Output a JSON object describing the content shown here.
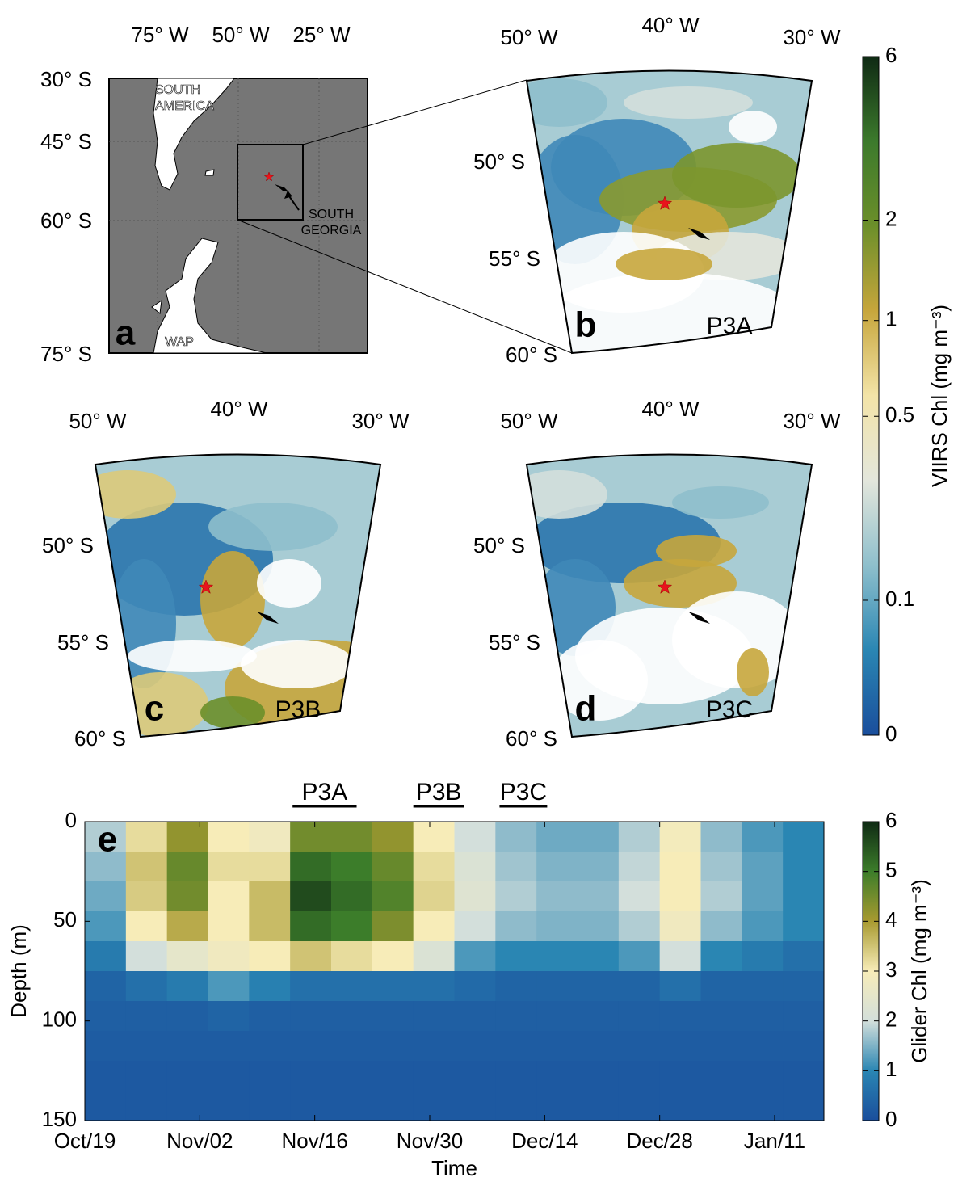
{
  "map_a": {
    "letter": "a",
    "lon_labels": [
      "75° W",
      "50° W",
      "25° W"
    ],
    "lat_labels": [
      "30° S",
      "45° S",
      "60° S",
      "75° S"
    ],
    "place_labels": [
      [
        "SOUTH",
        "AMERICA"
      ],
      [
        "SOUTH",
        "GEORGIA"
      ],
      [
        "WAP"
      ]
    ]
  },
  "satellite_maps": [
    {
      "letter": "b",
      "period": "P3A",
      "lon_labels": [
        "50° W",
        "40° W",
        "30° W"
      ],
      "lat_labels": [
        "50° S",
        "55° S",
        "60° S"
      ]
    },
    {
      "letter": "c",
      "period": "P3B",
      "lon_labels": [
        "50° W",
        "40° W",
        "30° W"
      ],
      "lat_labels": [
        "50° S",
        "55° S",
        "60° S"
      ]
    },
    {
      "letter": "d",
      "period": "P3C",
      "lon_labels": [
        "50° W",
        "40° W",
        "30° W"
      ],
      "lat_labels": [
        "50° S",
        "55° S",
        "60° S"
      ]
    }
  ],
  "chart_data": [
    {
      "type": "colorbar",
      "label": "VIIRS Chl (mg m⁻³)",
      "lim": [
        0,
        6
      ],
      "ticks": [
        0,
        0.1,
        0.5,
        1,
        2,
        6
      ],
      "scale": "log",
      "colormap": [
        "#1a4e9c",
        "#2a86b3",
        "#8ebfcc",
        "#e3e6dc",
        "#f3e4a8",
        "#c7a63c",
        "#6c8f2a",
        "#3c7a2c",
        "#0f2a14"
      ]
    },
    {
      "type": "heatmap",
      "xlabel": "Time",
      "ylabel": "Depth (m)",
      "x": [
        0,
        5,
        10,
        15,
        20,
        25,
        30,
        35,
        40,
        45,
        50,
        55,
        60,
        65,
        70,
        75,
        80,
        85
      ],
      "y": [
        0,
        15,
        30,
        45,
        60,
        75,
        90,
        105,
        120,
        135
      ],
      "values": [
        [
          1.8,
          3.2,
          4.2,
          3.0,
          2.8,
          4.5,
          4.5,
          4.2,
          3.0,
          2.0,
          1.6,
          1.4,
          1.4,
          1.8,
          2.9,
          1.6,
          1.2,
          1.0
        ],
        [
          1.6,
          3.5,
          4.6,
          3.2,
          3.2,
          5.2,
          5.0,
          4.6,
          3.2,
          2.2,
          1.7,
          1.5,
          1.5,
          1.9,
          3.0,
          1.7,
          1.3,
          1.0
        ],
        [
          1.4,
          3.4,
          4.5,
          3.0,
          3.6,
          5.6,
          5.2,
          4.8,
          3.3,
          2.3,
          1.8,
          1.6,
          1.6,
          2.0,
          3.0,
          1.8,
          1.3,
          1.0
        ],
        [
          1.2,
          3.0,
          3.8,
          3.0,
          3.6,
          5.2,
          5.0,
          4.4,
          3.0,
          2.0,
          1.6,
          1.5,
          1.5,
          1.8,
          2.8,
          1.6,
          1.2,
          1.0
        ],
        [
          0.8,
          2.0,
          2.5,
          2.8,
          3.0,
          3.5,
          3.2,
          3.0,
          2.2,
          1.2,
          1.0,
          1.0,
          1.0,
          1.2,
          2.0,
          1.0,
          0.8,
          0.6
        ],
        [
          0.4,
          0.6,
          0.8,
          1.2,
          0.9,
          0.6,
          0.6,
          0.6,
          0.6,
          0.5,
          0.4,
          0.4,
          0.4,
          0.4,
          0.6,
          0.4,
          0.4,
          0.4
        ],
        [
          0.3,
          0.3,
          0.3,
          0.4,
          0.3,
          0.3,
          0.3,
          0.3,
          0.3,
          0.3,
          0.3,
          0.3,
          0.3,
          0.3,
          0.3,
          0.3,
          0.3,
          0.3
        ],
        [
          0.25,
          0.25,
          0.25,
          0.25,
          0.25,
          0.25,
          0.25,
          0.25,
          0.25,
          0.25,
          0.25,
          0.25,
          0.25,
          0.25,
          0.25,
          0.25,
          0.25,
          0.25
        ],
        [
          0.2,
          0.2,
          0.2,
          0.2,
          0.2,
          0.2,
          0.2,
          0.2,
          0.2,
          0.2,
          0.2,
          0.2,
          0.2,
          0.2,
          0.2,
          0.2,
          0.2,
          0.2
        ],
        [
          0.2,
          0.2,
          0.2,
          0.2,
          0.2,
          0.2,
          0.2,
          0.2,
          0.2,
          0.2,
          0.2,
          0.2,
          0.2,
          0.2,
          0.2,
          0.2,
          0.2,
          0.2
        ]
      ],
      "xlim": [
        0,
        90
      ],
      "ylim": [
        0,
        150
      ],
      "xticks": [
        {
          "value": 0,
          "label": "Oct/19"
        },
        {
          "value": 14,
          "label": "Nov/02"
        },
        {
          "value": 28,
          "label": "Nov/16"
        },
        {
          "value": 42,
          "label": "Nov/30"
        },
        {
          "value": 56,
          "label": "Dec/14"
        },
        {
          "value": 70,
          "label": "Dec/28"
        },
        {
          "value": 84,
          "label": "Jan/11"
        }
      ],
      "yticks": [
        0,
        50,
        100,
        150
      ],
      "panel_letter": "e",
      "periods": [
        {
          "label": "P3A",
          "start": 25.3,
          "end": 33.1
        },
        {
          "label": "P3B",
          "start": 40,
          "end": 46.2
        },
        {
          "label": "P3C",
          "start": 50.5,
          "end": 56.3
        }
      ],
      "colorbar": {
        "label": "Glider Chl (mg m⁻³)",
        "lim": [
          0,
          6
        ],
        "ticks": [
          0,
          1,
          2,
          3,
          4,
          5,
          6
        ]
      },
      "colormap": [
        "#1a4e9c",
        "#2a86b3",
        "#d3dfdb",
        "#f7ecb8",
        "#a89a30",
        "#3c7d2a",
        "#0f2a14"
      ]
    }
  ]
}
